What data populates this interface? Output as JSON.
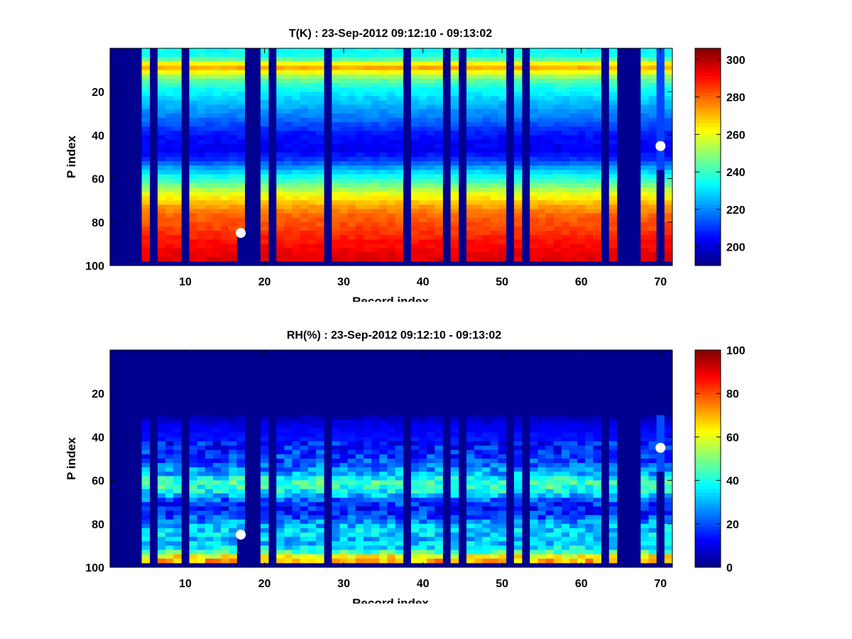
{
  "chart_data": [
    {
      "type": "heatmap",
      "title": "T(K) : 23-Sep-2012 09:12:10 - 09:13:02",
      "xlabel": "Record index",
      "ylabel": "P index",
      "xlim": [
        0.5,
        71.5
      ],
      "ylim": [
        100,
        0
      ],
      "xticks": [
        10,
        20,
        30,
        40,
        50,
        60,
        70
      ],
      "yticks": [
        20,
        40,
        60,
        80,
        100
      ],
      "colorbar": {
        "range": [
          190,
          306
        ],
        "ticks": [
          200,
          220,
          240,
          260,
          280,
          300
        ]
      },
      "profile_vs_p": [
        [
          0,
          234
        ],
        [
          4,
          236
        ],
        [
          7,
          262
        ],
        [
          9,
          272
        ],
        [
          11,
          262
        ],
        [
          14,
          246
        ],
        [
          18,
          236
        ],
        [
          25,
          226
        ],
        [
          32,
          218
        ],
        [
          40,
          206
        ],
        [
          47,
          203
        ],
        [
          52,
          212
        ],
        [
          56,
          226
        ],
        [
          60,
          238
        ],
        [
          64,
          250
        ],
        [
          68,
          262
        ],
        [
          72,
          272
        ],
        [
          77,
          280
        ],
        [
          84,
          285
        ],
        [
          88,
          289
        ],
        [
          92,
          292
        ],
        [
          97,
          295
        ]
      ],
      "valid_bottom_p": 97,
      "missing_records": [
        1,
        2,
        3,
        4,
        6,
        10,
        18,
        19,
        21,
        28,
        38,
        43,
        45,
        51,
        53,
        63,
        65,
        66,
        67
      ],
      "markers": [
        {
          "record": 17,
          "p": 85
        },
        {
          "record": 70,
          "p": 45
        }
      ]
    },
    {
      "type": "heatmap",
      "title": "RH(%) : 23-Sep-2012 09:12:10 - 09:13:02",
      "xlabel": "Record index",
      "ylabel": "P index",
      "xlim": [
        0.5,
        71.5
      ],
      "ylim": [
        100,
        0
      ],
      "xticks": [
        10,
        20,
        30,
        40,
        50,
        60,
        70
      ],
      "yticks": [
        20,
        40,
        60,
        80,
        100
      ],
      "colorbar": {
        "range": [
          0,
          100
        ],
        "ticks": [
          0,
          20,
          40,
          60,
          80,
          100
        ]
      },
      "profile_vs_p": [
        [
          0,
          3
        ],
        [
          30,
          3
        ],
        [
          34,
          10
        ],
        [
          40,
          14
        ],
        [
          46,
          16
        ],
        [
          52,
          20
        ],
        [
          57,
          30
        ],
        [
          59,
          38
        ],
        [
          61,
          44
        ],
        [
          63,
          42
        ],
        [
          66,
          34
        ],
        [
          70,
          18
        ],
        [
          74,
          14
        ],
        [
          78,
          22
        ],
        [
          80,
          30
        ],
        [
          84,
          34
        ],
        [
          88,
          30
        ],
        [
          91,
          36
        ],
        [
          93,
          44
        ],
        [
          95,
          62
        ],
        [
          97,
          70
        ]
      ],
      "valid_top_p": 30,
      "valid_bottom_p": 97,
      "missing_records": [
        1,
        2,
        3,
        4,
        6,
        10,
        18,
        19,
        21,
        28,
        38,
        43,
        45,
        51,
        53,
        63,
        65,
        66,
        67
      ],
      "markers": [
        {
          "record": 17,
          "p": 85
        },
        {
          "record": 70,
          "p": 45
        }
      ]
    }
  ]
}
